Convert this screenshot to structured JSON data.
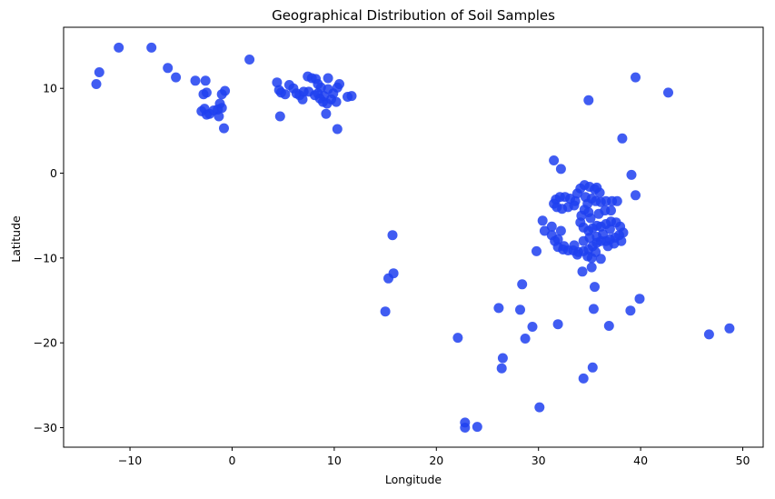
{
  "chart_data": {
    "type": "scatter",
    "title": "Geographical Distribution of Soil Samples",
    "xlabel": "Longitude",
    "ylabel": "Latitude",
    "xlim": [
      -16.5,
      52
    ],
    "ylim": [
      -32.3,
      17.2
    ],
    "xticks": [
      -10,
      0,
      10,
      20,
      30,
      40,
      50
    ],
    "yticks": [
      -30,
      -20,
      -10,
      0,
      10
    ],
    "xtick_labels": [
      "−10",
      "0",
      "10",
      "20",
      "30",
      "40",
      "50"
    ],
    "ytick_labels": [
      "−30",
      "−20",
      "−10",
      "0",
      "10"
    ],
    "grid": false,
    "legend": "none",
    "marker_color": "#1f3ff0",
    "series": [
      {
        "points": [
          [
            -13.3,
            10.5
          ],
          [
            -13.0,
            11.9
          ],
          [
            -11.1,
            14.8
          ],
          [
            -7.9,
            14.8
          ],
          [
            -6.3,
            12.4
          ],
          [
            -5.5,
            11.3
          ],
          [
            -3.6,
            10.9
          ],
          [
            -2.6,
            10.9
          ],
          [
            -2.5,
            9.5
          ],
          [
            -2.8,
            9.3
          ],
          [
            -2.7,
            7.6
          ],
          [
            -3.0,
            7.3
          ],
          [
            -2.5,
            6.9
          ],
          [
            -2.2,
            7.0
          ],
          [
            -1.8,
            7.4
          ],
          [
            -1.4,
            7.5
          ],
          [
            -1.0,
            7.7
          ],
          [
            -1.2,
            8.2
          ],
          [
            -1.0,
            9.3
          ],
          [
            -0.7,
            9.7
          ],
          [
            -1.3,
            6.7
          ],
          [
            -0.8,
            5.3
          ],
          [
            1.7,
            13.4
          ],
          [
            4.4,
            10.7
          ],
          [
            4.6,
            9.8
          ],
          [
            4.8,
            9.5
          ],
          [
            5.2,
            9.3
          ],
          [
            5.6,
            10.4
          ],
          [
            6.0,
            10.0
          ],
          [
            6.3,
            9.4
          ],
          [
            6.6,
            9.2
          ],
          [
            6.9,
            8.7
          ],
          [
            7.0,
            9.6
          ],
          [
            7.4,
            11.4
          ],
          [
            7.8,
            11.2
          ],
          [
            8.2,
            11.1
          ],
          [
            8.4,
            10.5
          ],
          [
            8.7,
            10.1
          ],
          [
            8.4,
            9.4
          ],
          [
            8.6,
            8.8
          ],
          [
            8.9,
            8.4
          ],
          [
            9.3,
            8.2
          ],
          [
            9.7,
            8.7
          ],
          [
            9.9,
            9.4
          ],
          [
            10.3,
            10.1
          ],
          [
            10.5,
            10.5
          ],
          [
            9.4,
            11.2
          ],
          [
            9.0,
            9.1
          ],
          [
            9.4,
            9.9
          ],
          [
            8.1,
            9.2
          ],
          [
            7.5,
            9.6
          ],
          [
            9.2,
            7.0
          ],
          [
            10.3,
            5.2
          ],
          [
            4.7,
            6.7
          ],
          [
            10.2,
            8.4
          ],
          [
            11.3,
            9.0
          ],
          [
            11.7,
            9.1
          ],
          [
            15.0,
            -16.3
          ],
          [
            15.3,
            -12.4
          ],
          [
            15.8,
            -11.8
          ],
          [
            15.7,
            -7.3
          ],
          [
            22.1,
            -19.4
          ],
          [
            22.8,
            -29.4
          ],
          [
            22.8,
            -30.0
          ],
          [
            24.0,
            -29.9
          ],
          [
            26.1,
            -15.9
          ],
          [
            26.5,
            -21.8
          ],
          [
            26.4,
            -23.0
          ],
          [
            28.2,
            -16.1
          ],
          [
            28.4,
            -13.1
          ],
          [
            28.7,
            -19.5
          ],
          [
            29.4,
            -18.1
          ],
          [
            29.8,
            -9.2
          ],
          [
            30.1,
            -27.6
          ],
          [
            30.4,
            -5.6
          ],
          [
            30.6,
            -6.8
          ],
          [
            31.3,
            -6.3
          ],
          [
            31.3,
            -7.3
          ],
          [
            31.6,
            -8.0
          ],
          [
            31.9,
            -8.7
          ],
          [
            32.4,
            -9.0
          ],
          [
            32.9,
            -9.1
          ],
          [
            33.4,
            -9.1
          ],
          [
            33.9,
            -9.3
          ],
          [
            34.4,
            -9.2
          ],
          [
            34.9,
            -9.0
          ],
          [
            35.3,
            -8.6
          ],
          [
            35.7,
            -8.2
          ],
          [
            36.1,
            -8.0
          ],
          [
            36.6,
            -8.0
          ],
          [
            37.0,
            -7.8
          ],
          [
            37.5,
            -7.6
          ],
          [
            37.9,
            -7.3
          ],
          [
            38.3,
            -7.0
          ],
          [
            38.0,
            -6.3
          ],
          [
            37.6,
            -5.8
          ],
          [
            37.1,
            -5.7
          ],
          [
            36.6,
            -6.0
          ],
          [
            36.1,
            -6.3
          ],
          [
            35.7,
            -6.2
          ],
          [
            35.3,
            -6.5
          ],
          [
            34.9,
            -6.8
          ],
          [
            34.4,
            -6.4
          ],
          [
            34.1,
            -5.8
          ],
          [
            34.2,
            -5.0
          ],
          [
            34.5,
            -4.3
          ],
          [
            34.8,
            -3.6
          ],
          [
            35.2,
            -3.0
          ],
          [
            35.6,
            -3.3
          ],
          [
            36.1,
            -3.4
          ],
          [
            36.6,
            -3.3
          ],
          [
            37.2,
            -3.3
          ],
          [
            37.7,
            -3.3
          ],
          [
            33.6,
            -3.3
          ],
          [
            33.1,
            -3.0
          ],
          [
            32.6,
            -2.8
          ],
          [
            32.1,
            -2.8
          ],
          [
            31.7,
            -3.1
          ],
          [
            31.5,
            -3.6
          ],
          [
            31.8,
            -4.0
          ],
          [
            32.3,
            -4.2
          ],
          [
            32.9,
            -4.0
          ],
          [
            33.5,
            -3.8
          ],
          [
            33.8,
            -2.4
          ],
          [
            34.1,
            -1.8
          ],
          [
            34.5,
            -1.4
          ],
          [
            35.0,
            -1.6
          ],
          [
            35.5,
            -1.9
          ],
          [
            36.0,
            -2.3
          ],
          [
            35.7,
            -1.7
          ],
          [
            34.6,
            -2.8
          ],
          [
            34.9,
            -4.6
          ],
          [
            35.1,
            -5.3
          ],
          [
            35.9,
            -4.8
          ],
          [
            36.5,
            -4.4
          ],
          [
            37.1,
            -4.4
          ],
          [
            37.0,
            -6.6
          ],
          [
            36.3,
            -7.2
          ],
          [
            35.7,
            -7.5
          ],
          [
            35.0,
            -7.6
          ],
          [
            34.4,
            -8.0
          ],
          [
            33.5,
            -8.5
          ],
          [
            32.5,
            -8.6
          ],
          [
            31.9,
            -7.8
          ],
          [
            32.2,
            -6.8
          ],
          [
            36.8,
            -8.6
          ],
          [
            37.4,
            -8.3
          ],
          [
            38.1,
            -8.0
          ],
          [
            33.8,
            -9.6
          ],
          [
            34.8,
            -9.8
          ],
          [
            35.6,
            -9.3
          ],
          [
            36.1,
            -10.1
          ],
          [
            35.2,
            -10.0
          ],
          [
            34.3,
            -11.6
          ],
          [
            35.2,
            -11.1
          ],
          [
            35.5,
            -13.4
          ],
          [
            35.4,
            -16.0
          ],
          [
            36.9,
            -18.0
          ],
          [
            35.3,
            -22.9
          ],
          [
            34.4,
            -24.2
          ],
          [
            31.9,
            -17.8
          ],
          [
            31.5,
            1.5
          ],
          [
            32.2,
            0.5
          ],
          [
            38.2,
            4.1
          ],
          [
            34.9,
            8.6
          ],
          [
            39.1,
            -0.2
          ],
          [
            39.5,
            -2.6
          ],
          [
            39.5,
            11.3
          ],
          [
            42.7,
            9.5
          ],
          [
            39.9,
            -14.8
          ],
          [
            39.0,
            -16.2
          ],
          [
            46.7,
            -19.0
          ],
          [
            48.7,
            -18.3
          ]
        ]
      }
    ]
  }
}
